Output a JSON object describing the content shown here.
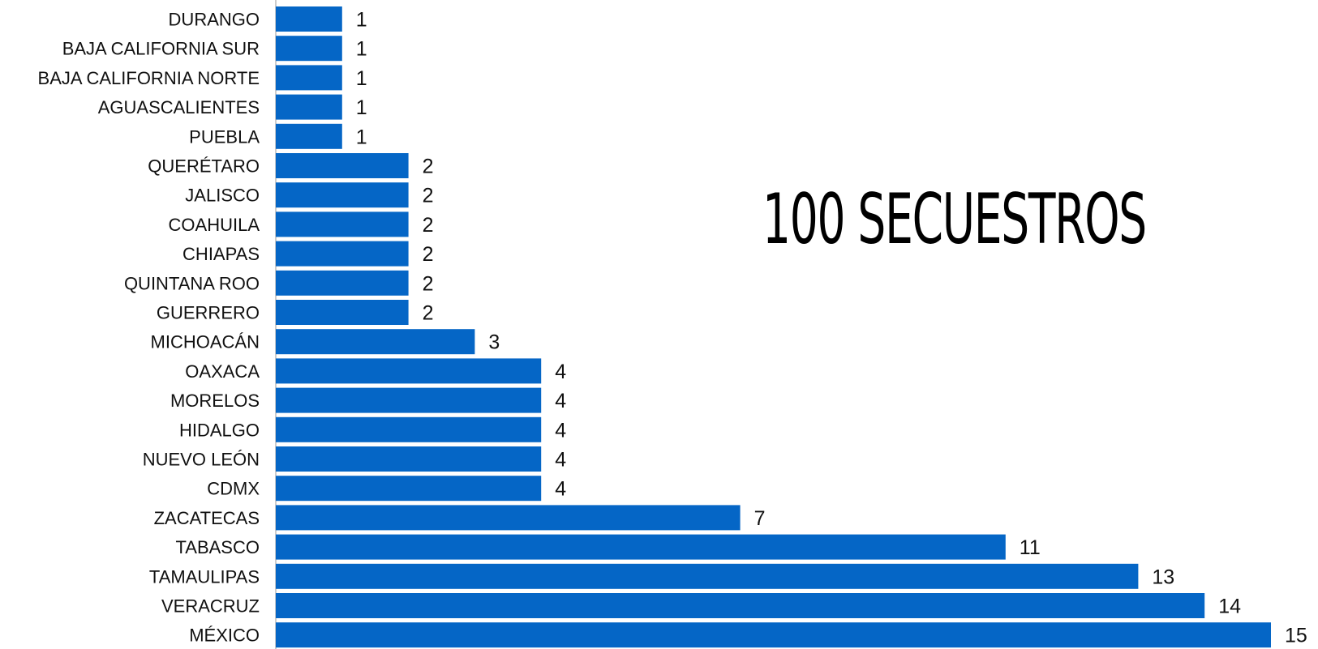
{
  "headline": "100 SECUESTROS",
  "chart_data": {
    "type": "bar",
    "orientation": "horizontal",
    "categories": [
      "DURANGO",
      "BAJA CALIFORNIA SUR",
      "BAJA CALIFORNIA NORTE",
      "AGUASCALIENTES",
      "PUEBLA",
      "QUERÉTARO",
      "JALISCO",
      "COAHUILA",
      "CHIAPAS",
      "QUINTANA ROO",
      "GUERRERO",
      "MICHOACÁN",
      "OAXACA",
      "MORELOS",
      "HIDALGO",
      "NUEVO LEÓN",
      "CDMX",
      "ZACATECAS",
      "TABASCO",
      "TAMAULIPAS",
      "VERACRUZ",
      "MÉXICO"
    ],
    "values": [
      1,
      1,
      1,
      1,
      1,
      2,
      2,
      2,
      2,
      2,
      2,
      3,
      4,
      4,
      4,
      4,
      4,
      7,
      11,
      13,
      14,
      15
    ],
    "title": "100 SECUESTROS",
    "xlabel": "",
    "ylabel": "",
    "xlim": [
      0,
      15
    ],
    "grid": false,
    "legend": "none",
    "bar_color": "#0566c6"
  }
}
